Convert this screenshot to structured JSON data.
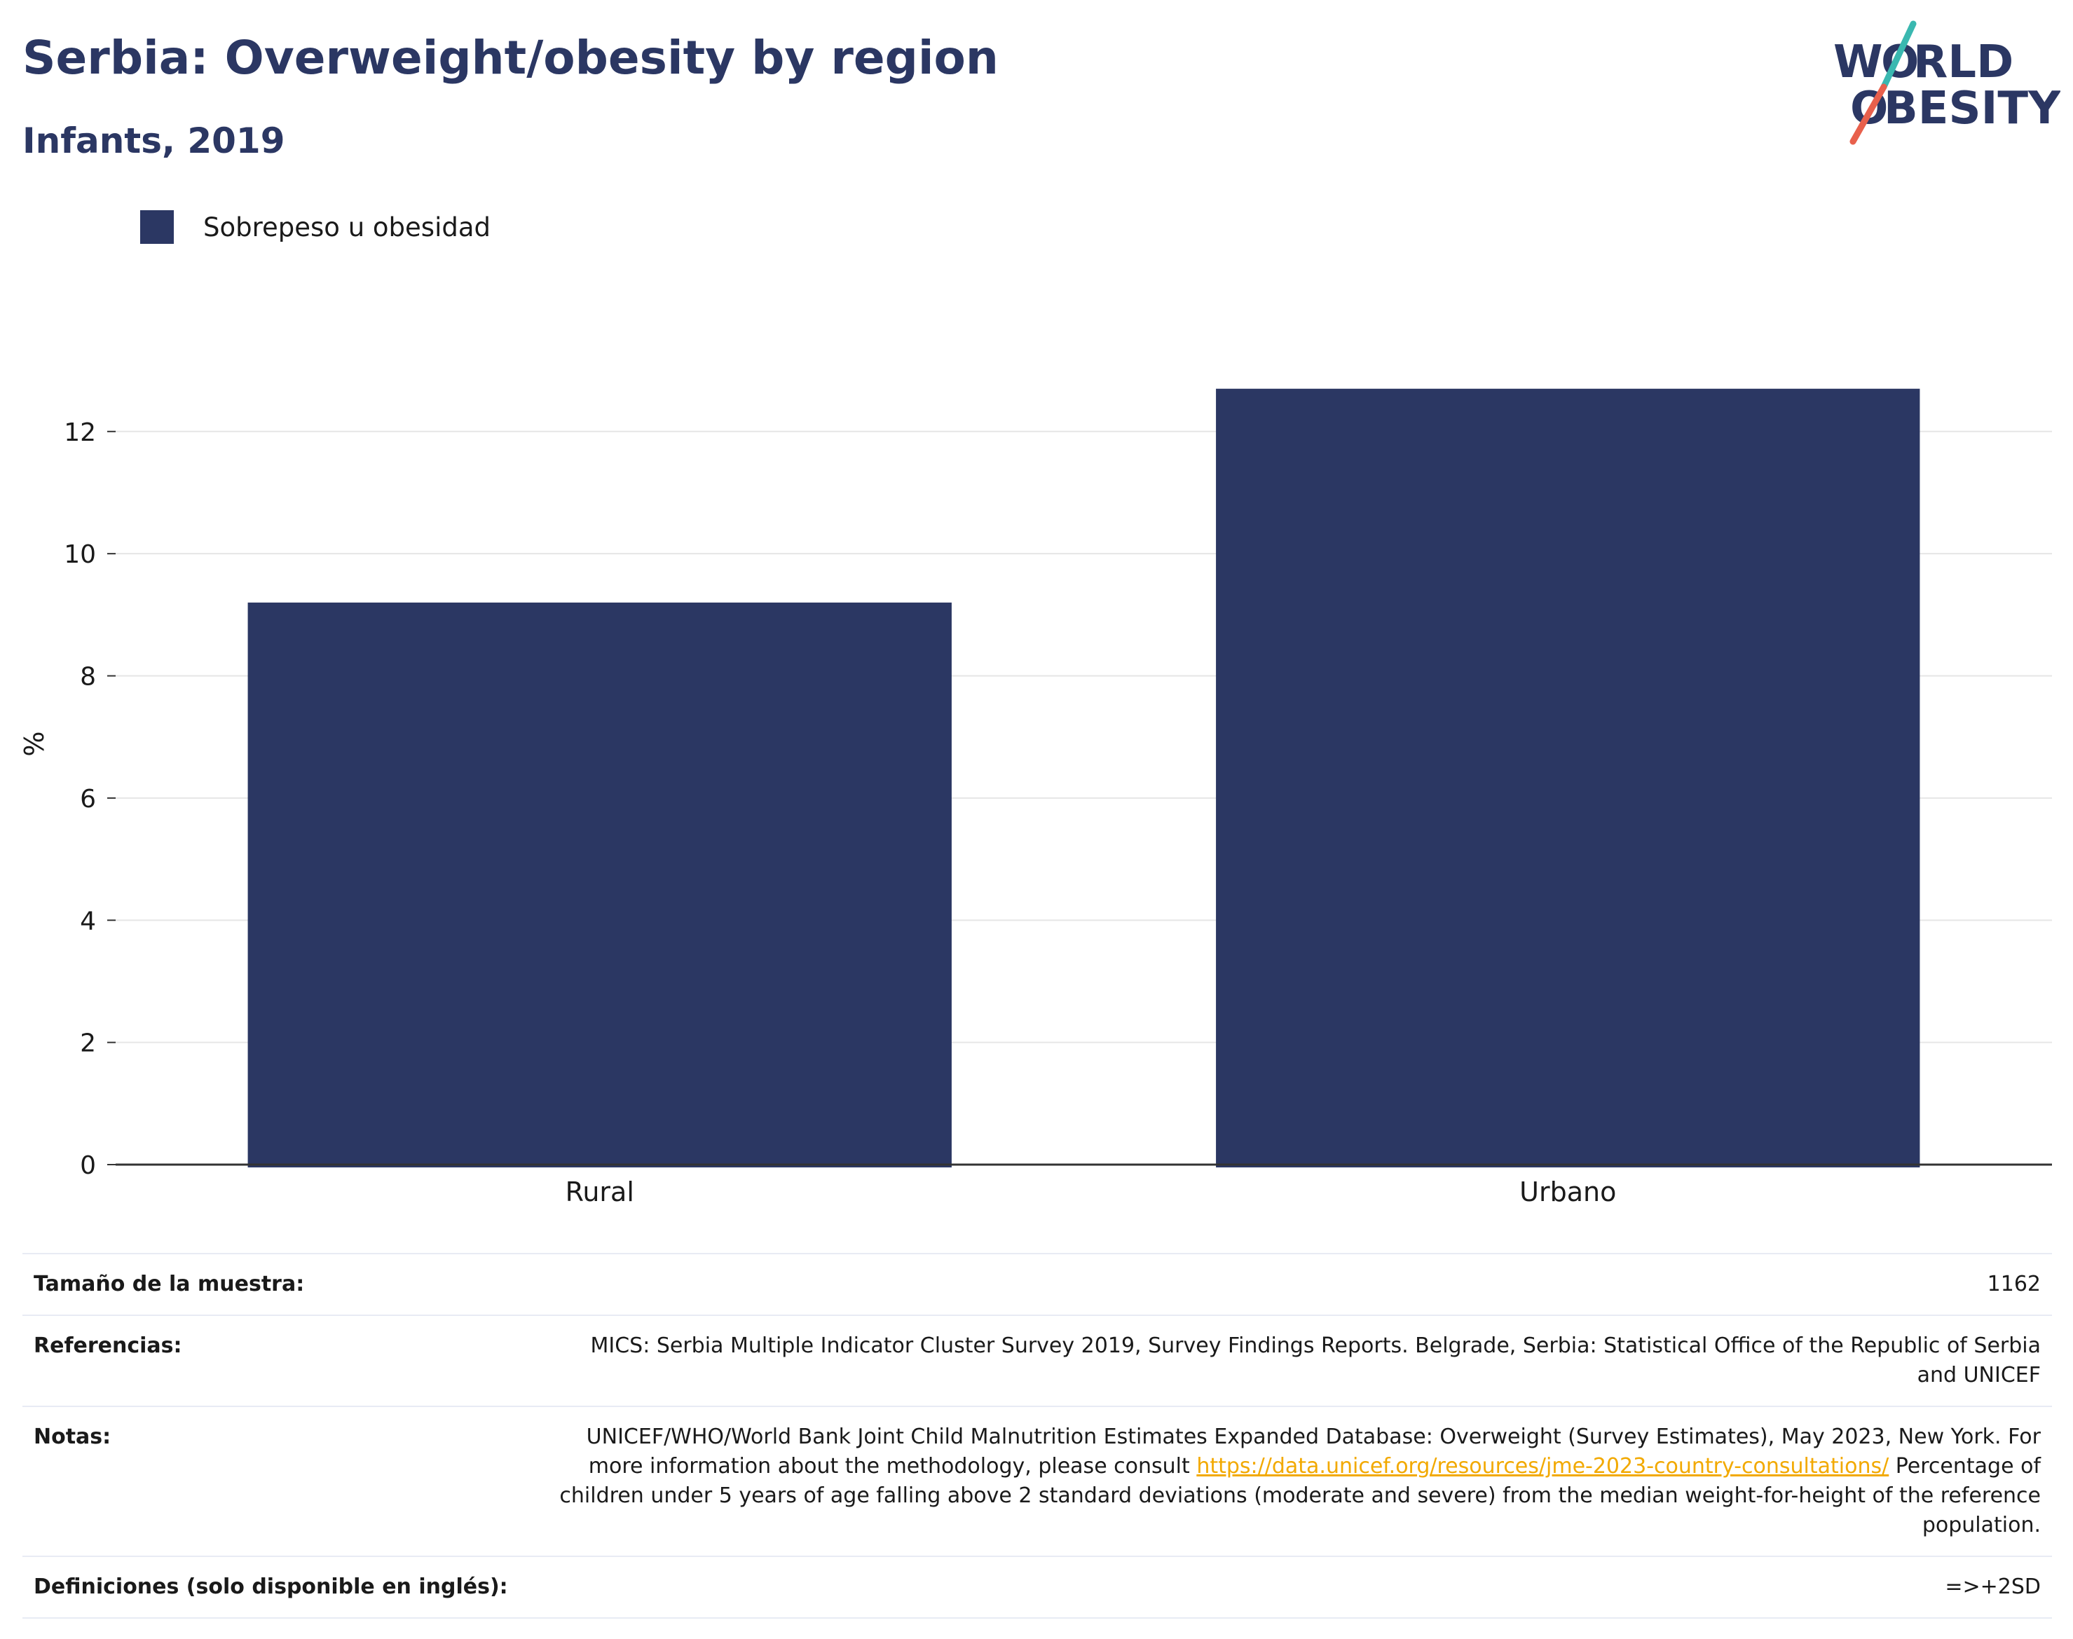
{
  "title": "Serbia: Overweight/obesity by region",
  "subtitle": "Infants, 2019",
  "logo": {
    "line1_pre": "W",
    "line1_post": "RLD",
    "line2_pre": "",
    "line2_post": "BESITY",
    "slash_colors": [
      "#3ab8b0",
      "#e8604c"
    ],
    "text_color": "#2b3763"
  },
  "colors": {
    "bar": "#2b3763",
    "grid": "#e6e6e6",
    "axis": "#333333",
    "link": "#f2a900"
  },
  "chart_data": {
    "type": "bar",
    "categories": [
      "Rural",
      "Urbano"
    ],
    "series": [
      {
        "name": "Sobrepeso u obesidad",
        "values": [
          9.2,
          12.7
        ]
      }
    ],
    "ylabel": "%",
    "ylim": [
      0,
      13.5
    ],
    "yticks": [
      0,
      2,
      4,
      6,
      8,
      10,
      12
    ],
    "grid": true,
    "legend_position": "top-left"
  },
  "table": [
    {
      "key": "Tamaño de la muestra:",
      "value": "1162"
    },
    {
      "key": "Referencias:",
      "value": "MICS: Serbia Multiple Indicator Cluster Survey 2019, Survey Findings Reports. Belgrade, Serbia: Statistical Office of the Republic of Serbia and UNICEF"
    },
    {
      "key": "Notas:",
      "value_pre": "UNICEF/WHO/World Bank Joint Child Malnutrition Estimates Expanded Database: Overweight (Survey Estimates), May 2023, New York. For more information about the methodology, please consult ",
      "link": "https://data.unicef.org/resources/jme-2023-country-consultations/",
      "value_post": " Percentage of children under 5 years of age falling above 2 standard deviations (moderate and severe) from the median weight-for-height of the reference population."
    },
    {
      "key": "Definiciones (solo disponible en inglés):",
      "value": "=>+2SD"
    }
  ]
}
